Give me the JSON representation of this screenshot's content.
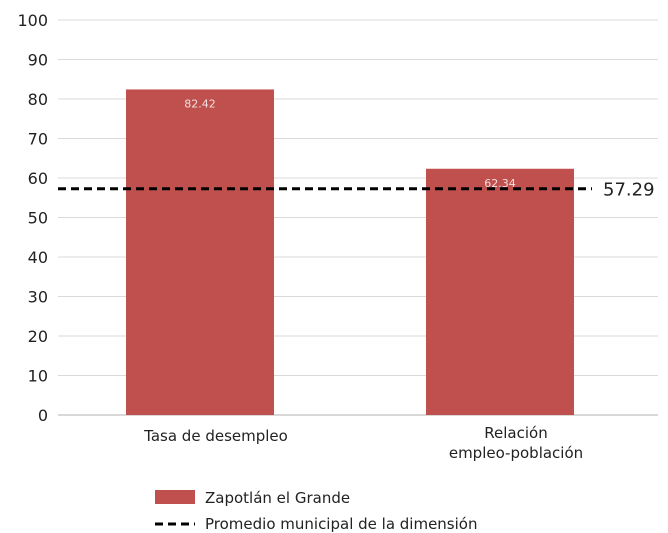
{
  "chart_data": {
    "type": "bar",
    "categories": [
      [
        "Tasa de desempleo"
      ],
      [
        "Relación",
        "empleo-población"
      ]
    ],
    "series": [
      {
        "name": "Zapotlán el Grande",
        "values": [
          82.42,
          62.34
        ],
        "color": "#c0504d"
      }
    ],
    "data_labels": [
      "82.42",
      "62.34"
    ],
    "reference_line": {
      "name": "Promedio municipal de la dimensión",
      "value": 57.29,
      "label": "57.29",
      "style": "dashed",
      "color": "#000000"
    },
    "ylim": [
      0,
      100
    ],
    "yticks": [
      0,
      10,
      20,
      30,
      40,
      50,
      60,
      70,
      80,
      90,
      100
    ],
    "grid": true,
    "legend_position": "bottom",
    "title": "",
    "xlabel": "",
    "ylabel": ""
  }
}
